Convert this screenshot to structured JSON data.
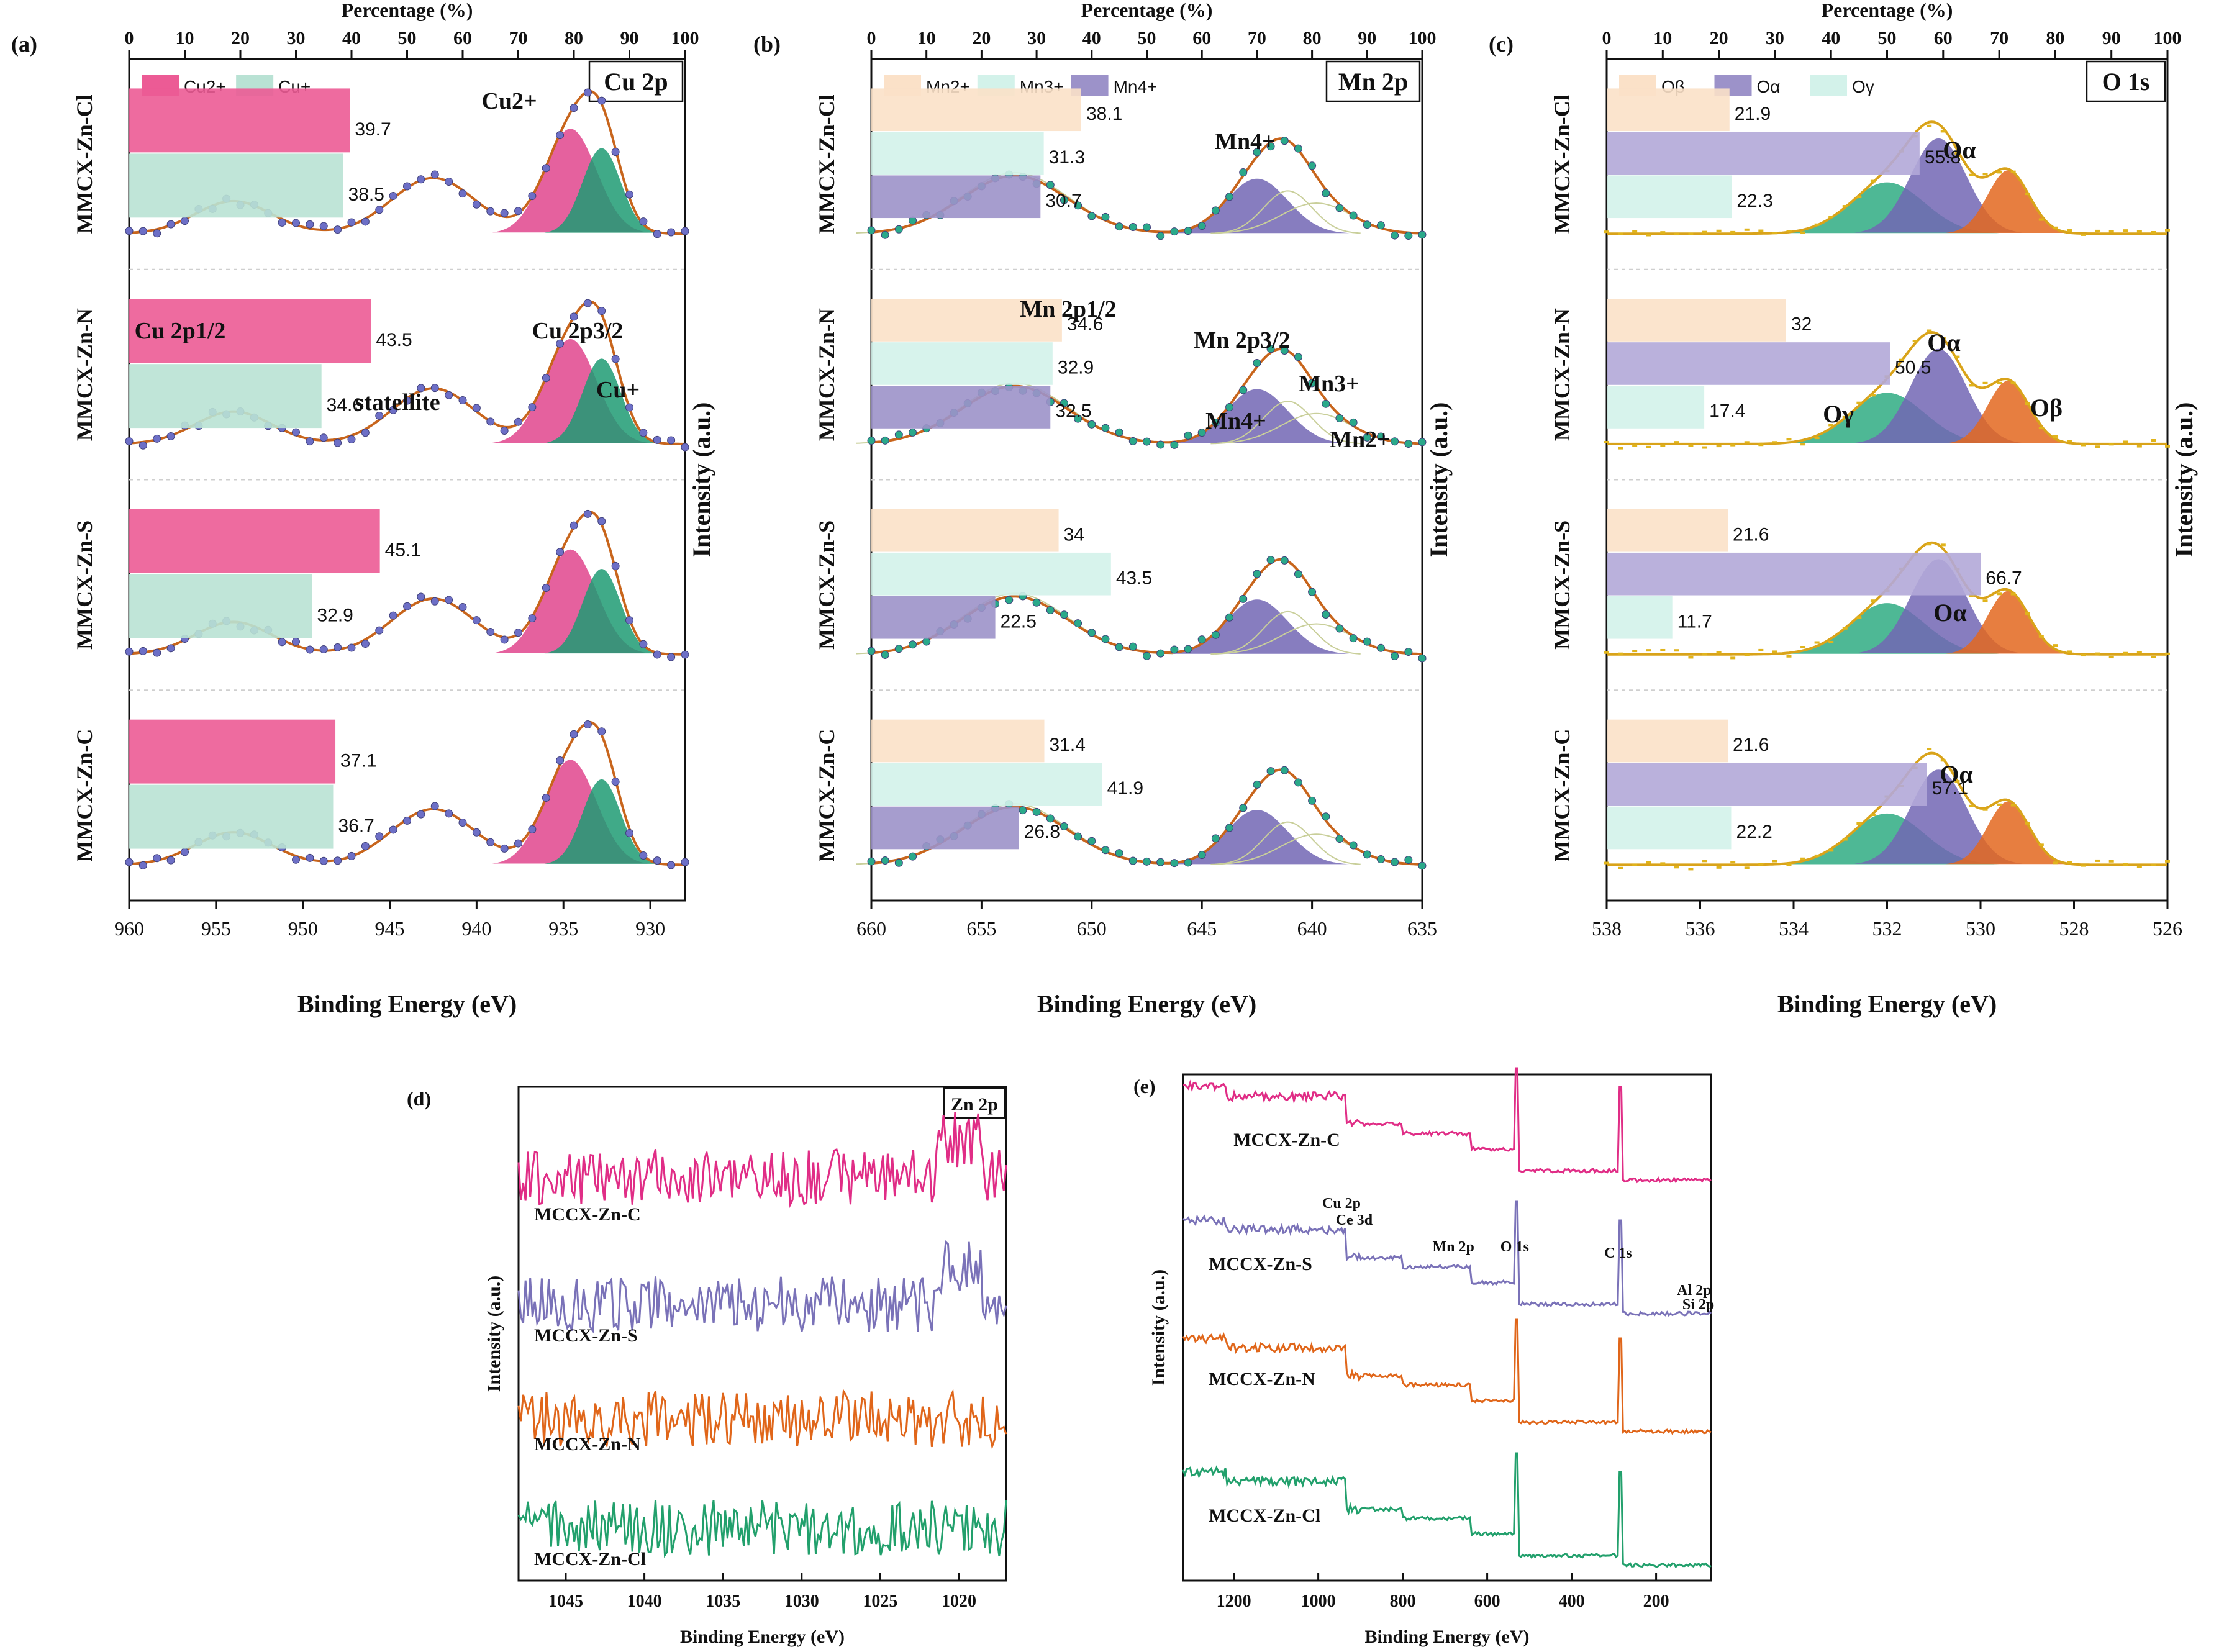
{
  "figure": {
    "panels": [
      "(a)",
      "(b)",
      "(c)",
      "(d)",
      "(e)"
    ]
  },
  "chart_data": [
    {
      "id": "a",
      "type": "bar",
      "panel_label": "(a)",
      "title": "Cu 2p",
      "top_axis_label": "Percentage (%)",
      "xlabel": "Binding Energy (eV)",
      "ylabel": "Intensity (a.u.)",
      "xlim": [
        960,
        928
      ],
      "x_ticks": [
        960,
        955,
        950,
        945,
        940,
        935,
        930
      ],
      "pct_ticks": [
        0,
        10,
        20,
        30,
        40,
        50,
        60,
        70,
        80,
        90,
        100
      ],
      "legend": [
        {
          "name": "Cu2+",
          "color": "#ec5b95"
        },
        {
          "name": "Cu+",
          "color": "#b9e2d4"
        }
      ],
      "series_names": [
        "Cu2+",
        "Cu+"
      ],
      "series_colors": [
        "#ec5b95",
        "#b9e2d4"
      ],
      "samples": [
        "MMCX-Zn-Cl",
        "MMCX-Zn-N",
        "MMCX-Zn-S",
        "MMCX-Zn-C"
      ],
      "bars": [
        [
          39.7,
          38.5
        ],
        [
          43.5,
          34.6
        ],
        [
          45.1,
          32.9
        ],
        [
          37.1,
          36.7
        ]
      ],
      "peaks": [
        {
          "c": 954,
          "w": 2.2,
          "h": 0.28,
          "color": "none"
        },
        {
          "c": 942.5,
          "w": 2.4,
          "h": 0.48,
          "color": "none"
        },
        {
          "c": 934.6,
          "w": 1.5,
          "h": 0.86,
          "color": "#e0458d"
        },
        {
          "c": 932.8,
          "w": 1.1,
          "h": 0.7,
          "color": "#1f9b73"
        }
      ],
      "peak_labels": [
        "Cu2+",
        "Cu 2p1/2",
        "Cu 2p3/2",
        "statellite",
        "Cu+"
      ]
    },
    {
      "id": "b",
      "type": "bar",
      "panel_label": "(b)",
      "title": "Mn 2p",
      "top_axis_label": "Percentage (%)",
      "xlabel": "Binding Energy (eV)",
      "ylabel": "Intensity (a.u.)",
      "xlim": [
        660,
        635
      ],
      "x_ticks": [
        660,
        655,
        650,
        645,
        640,
        635
      ],
      "pct_ticks": [
        0,
        10,
        20,
        30,
        40,
        50,
        60,
        70,
        80,
        90,
        100
      ],
      "legend": [
        {
          "name": "Mn2+",
          "color": "#fbe1c8"
        },
        {
          "name": "Mn3+",
          "color": "#d3f2ea"
        },
        {
          "name": "Mn4+",
          "color": "#9c92c9"
        }
      ],
      "series_names": [
        "Mn2+",
        "Mn3+",
        "Mn4+"
      ],
      "series_colors": [
        "#fbe1c8",
        "#d3f2ea",
        "#9c92c9"
      ],
      "samples": [
        "MMCX-Zn-Cl",
        "MMCX-Zn-N",
        "MMCX-Zn-S",
        "MMCX-Zn-C"
      ],
      "bars": [
        [
          38.1,
          31.3,
          30.7
        ],
        [
          34.6,
          32.9,
          32.5
        ],
        [
          34,
          43.5,
          22.5
        ],
        [
          31.4,
          41.9,
          26.8
        ]
      ],
      "peaks": [
        {
          "c": 653.5,
          "w": 2.4,
          "h": 0.5,
          "color": "none"
        },
        {
          "c": 642.5,
          "w": 1.4,
          "h": 0.45,
          "color": "#7266b4"
        },
        {
          "c": 641.1,
          "w": 1.1,
          "h": 0.35,
          "color": "none"
        },
        {
          "c": 639.8,
          "w": 1.6,
          "h": 0.25,
          "color": "none"
        }
      ],
      "peak_labels": [
        "Mn4+",
        "Mn 2p1/2",
        "Mn 2p3/2",
        "Mn3+",
        "Mn4+",
        "Mn2+"
      ]
    },
    {
      "id": "c",
      "type": "bar",
      "panel_label": "(c)",
      "title": "O 1s",
      "top_axis_label": "Percentage (%)",
      "xlabel": "Binding Energy (eV)",
      "ylabel": "Intensity (a.u.)",
      "xlim": [
        538,
        526
      ],
      "x_ticks": [
        538,
        536,
        534,
        532,
        530,
        528,
        526
      ],
      "pct_ticks": [
        0,
        10,
        20,
        30,
        40,
        50,
        60,
        70,
        80,
        90,
        100
      ],
      "legend": [
        {
          "name": "Oβ",
          "color": "#fbe1c8"
        },
        {
          "name": "Oα",
          "color": "#9c92c9"
        },
        {
          "name": "Oγ",
          "color": "#d3f2ea"
        }
      ],
      "series_names": [
        "Oβ",
        "Oα",
        "Oγ"
      ],
      "series_colors": [
        "#fbe1c8",
        "#b2a8d8",
        "#d3f2ea"
      ],
      "samples": [
        "MMCX-Zn-Cl",
        "MMCX-Zn-N",
        "MMCX-Zn-S",
        "MMCX-Zn-C"
      ],
      "bars": [
        [
          21.9,
          55.8,
          22.3
        ],
        [
          32,
          50.5,
          17.4
        ],
        [
          21.6,
          66.7,
          11.7
        ],
        [
          21.6,
          57.1,
          22.2
        ]
      ],
      "peaks": [
        {
          "c": 532.0,
          "w": 0.8,
          "h": 0.42,
          "color": "#2fab82"
        },
        {
          "c": 530.9,
          "w": 0.6,
          "h": 0.78,
          "color": "#7266b4"
        },
        {
          "c": 529.4,
          "w": 0.45,
          "h": 0.52,
          "color": "#e3671f"
        }
      ],
      "peak_labels": [
        "Oα",
        "Oα",
        "Oγ",
        "Oβ",
        "Oα",
        "Oα"
      ]
    },
    {
      "id": "d",
      "type": "line",
      "panel_label": "(d)",
      "title": "Zn 2p",
      "xlabel": "Binding Energy (eV)",
      "ylabel": "Intensity (a.u.)",
      "xlim": [
        1048,
        1017
      ],
      "x_ticks": [
        1045,
        1040,
        1035,
        1030,
        1025,
        1020
      ],
      "series": [
        {
          "name": "MCCX-Zn-C",
          "color": "#e02d86"
        },
        {
          "name": "MCCX-Zn-S",
          "color": "#7a72b8"
        },
        {
          "name": "MCCX-Zn-N",
          "color": "#e0661a"
        },
        {
          "name": "MCCX-Zn-Cl",
          "color": "#22a06c"
        }
      ]
    },
    {
      "id": "e",
      "type": "line",
      "panel_label": "(e)",
      "xlabel": "Binding Energy (eV)",
      "ylabel": "Intensity (a.u.)",
      "xlim": [
        1320,
        70
      ],
      "x_ticks": [
        1200,
        1000,
        800,
        600,
        400,
        200
      ],
      "series": [
        {
          "name": "MCCX-Zn-C",
          "color": "#e02d86"
        },
        {
          "name": "MCCX-Zn-S",
          "color": "#7a72b8"
        },
        {
          "name": "MCCX-Zn-N",
          "color": "#e0661a"
        },
        {
          "name": "MCCX-Zn-Cl",
          "color": "#22a06c"
        }
      ],
      "annotations": [
        "Cu 2p",
        "Ce 3d",
        "Mn 2p",
        "O 1s",
        "C 1s",
        "Al 2p",
        "Si 2p"
      ]
    }
  ]
}
